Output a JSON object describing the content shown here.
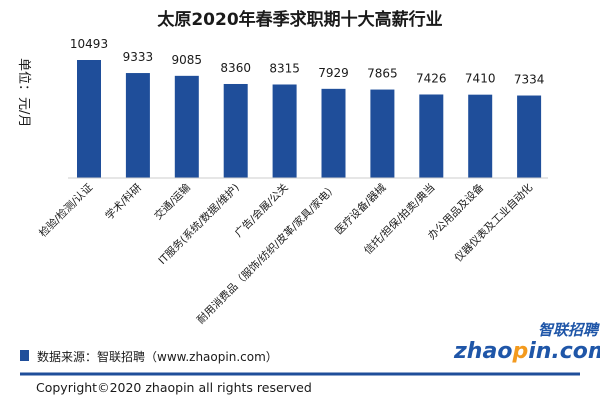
{
  "chart_data": {
    "type": "bar",
    "title": "太原2020年春季求职期十大高薪行业",
    "ylabel": "单位：元/月",
    "categories": [
      "检验/检测/认证",
      "学术/科研",
      "交通/运输",
      "IT服务(系统/数据/维护)",
      "广告/会展/公关",
      "耐用消费品（服饰/纺织/皮革/家具/家电）",
      "医疗设备/器械",
      "信托/担保/拍卖/典当",
      "办公用品及设备",
      "仪器仪表及工业自动化"
    ],
    "values": [
      10493,
      9333,
      9085,
      8360,
      8315,
      7929,
      7865,
      7426,
      7410,
      7334
    ],
    "ylim": [
      0,
      11000
    ],
    "grid": false,
    "bar_color": "#1f4e9a"
  },
  "footer": {
    "source": "数据来源：智联招聘（www.zhaopin.com）",
    "copyright": "Copyright©2020 zhaopin all rights reserved"
  },
  "logo": {
    "cn": "智联招聘",
    "en_left": "zhao",
    "en_mid": "p",
    "en_right": "in.com"
  },
  "colors": {
    "divider": "#1f4e9a",
    "logo_blue": "#1f56a8",
    "logo_orange": "#f39a1e"
  }
}
